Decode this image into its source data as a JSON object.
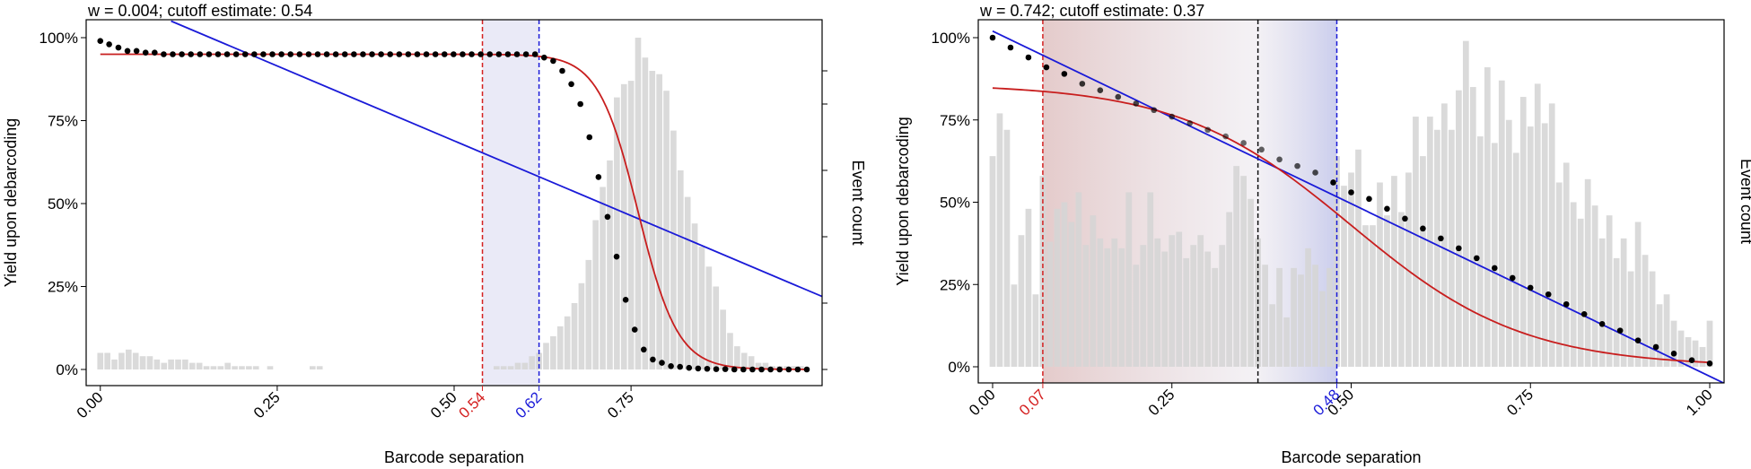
{
  "chart_data": [
    {
      "type": "bar",
      "title": "w = 0.004; cutoff estimate: 0.54",
      "xlabel": "Barcode separation",
      "ylabel": "Yield upon debarcoding",
      "y2label": "Event count",
      "xlim": [
        -0.02,
        1.02
      ],
      "ylim": [
        0,
        1
      ],
      "x_ticks": [
        {
          "v": 0,
          "label": "0.00"
        },
        {
          "v": 0.25,
          "label": "0.25"
        },
        {
          "v": 0.5,
          "label": "0.50"
        },
        {
          "v": 0.75,
          "label": "0.75"
        }
      ],
      "y_ticks": [
        {
          "v": 0,
          "label": "0%"
        },
        {
          "v": 0.25,
          "label": "25%"
        },
        {
          "v": 0.5,
          "label": "50%"
        },
        {
          "v": 0.75,
          "label": "75%"
        },
        {
          "v": 1,
          "label": "100%"
        }
      ],
      "right_ticks": [
        0,
        0.2,
        0.4,
        0.6,
        0.8,
        0.9
      ],
      "cutoffs": [
        {
          "v": 0.54,
          "label": "0.54",
          "color": "#d42020"
        },
        {
          "v": 0.62,
          "label": "0.62",
          "color": "#1a1ad8"
        }
      ],
      "shade": {
        "from": 0.54,
        "to": 0.62,
        "color_left": "#e8e8f6",
        "color_right": "#e8e8f6"
      },
      "hist": {
        "bin_start": 0,
        "bin_width": 0.01,
        "values": [
          0.05,
          0.05,
          0.03,
          0.05,
          0.06,
          0.05,
          0.04,
          0.04,
          0.03,
          0.02,
          0.03,
          0.03,
          0.03,
          0.02,
          0.02,
          0.01,
          0.01,
          0.01,
          0.02,
          0.01,
          0.01,
          0.01,
          0.01,
          0,
          0.01,
          0,
          0,
          0,
          0,
          0,
          0.01,
          0.01,
          0,
          0,
          0,
          0,
          0,
          0,
          0,
          0,
          0,
          0,
          0,
          0,
          0,
          0,
          0,
          0,
          0,
          0,
          0,
          0,
          0,
          0,
          0,
          0,
          0.01,
          0.01,
          0.01,
          0.02,
          0.02,
          0.04,
          0.05,
          0.08,
          0.1,
          0.13,
          0.16,
          0.2,
          0.26,
          0.33,
          0.45,
          0.55,
          0.63,
          0.82,
          0.86,
          0.87,
          1.0,
          0.94,
          0.9,
          0.89,
          0.84,
          0.72,
          0.6,
          0.52,
          0.44,
          0.37,
          0.31,
          0.25,
          0.18,
          0.11,
          0.07,
          0.05,
          0.04,
          0.02,
          0.02,
          0.01,
          0.01,
          0.01,
          0.01,
          0.01
        ],
        "color": "#d5d5d5"
      },
      "points": {
        "x": [
          0,
          0.0125,
          0.0256,
          0.0384,
          0.0512,
          0.064,
          0.0768,
          0.0896,
          0.1024,
          0.1152,
          0.128,
          0.1408,
          0.1536,
          0.1664,
          0.1792,
          0.192,
          0.2048,
          0.2176,
          0.2304,
          0.2432,
          0.256,
          0.2688,
          0.2816,
          0.2944,
          0.3072,
          0.32,
          0.3328,
          0.3456,
          0.3584,
          0.3712,
          0.384,
          0.3968,
          0.4096,
          0.4224,
          0.4352,
          0.448,
          0.4608,
          0.4736,
          0.4864,
          0.4992,
          0.512,
          0.5248,
          0.5376,
          0.5504,
          0.5632,
          0.576,
          0.5888,
          0.6016,
          0.6144,
          0.6272,
          0.64,
          0.6528,
          0.6656,
          0.6784,
          0.6912,
          0.704,
          0.7168,
          0.7296,
          0.7424,
          0.7552,
          0.768,
          0.7808,
          0.7936,
          0.8064,
          0.8192,
          0.832,
          0.8448,
          0.8576,
          0.8704,
          0.8832,
          0.896,
          0.9088,
          0.9216,
          0.9344,
          0.9472,
          0.96,
          0.9728,
          0.9856,
          0.9984
        ],
        "y": [
          0.99,
          0.98,
          0.97,
          0.96,
          0.96,
          0.955,
          0.955,
          0.95,
          0.95,
          0.95,
          0.95,
          0.95,
          0.95,
          0.95,
          0.95,
          0.95,
          0.95,
          0.95,
          0.95,
          0.95,
          0.95,
          0.95,
          0.95,
          0.95,
          0.95,
          0.95,
          0.95,
          0.95,
          0.95,
          0.95,
          0.95,
          0.95,
          0.95,
          0.95,
          0.95,
          0.95,
          0.95,
          0.95,
          0.95,
          0.95,
          0.95,
          0.95,
          0.95,
          0.95,
          0.95,
          0.95,
          0.95,
          0.95,
          0.95,
          0.94,
          0.93,
          0.9,
          0.86,
          0.8,
          0.7,
          0.58,
          0.46,
          0.34,
          0.21,
          0.12,
          0.06,
          0.03,
          0.02,
          0.01,
          0.008,
          0.005,
          0.003,
          0.002,
          0.001,
          0.001,
          0,
          0,
          0,
          0,
          0,
          0,
          0,
          0,
          0
        ],
        "color": "#000000"
      },
      "curve": {
        "type": "logistic",
        "ymax": 0.95,
        "mid": 0.76,
        "scale": 0.028,
        "color": "#c81e1e"
      },
      "fit_line": {
        "x0": 0.1,
        "y0": 1.05,
        "x1": 1.02,
        "y1": 0.22,
        "color": "#1a1ad8"
      }
    },
    {
      "type": "bar",
      "title": "w = 0.742; cutoff estimate: 0.37",
      "xlabel": "Barcode separation",
      "ylabel": "Yield upon debarcoding",
      "y2label": "Event count",
      "xlim": [
        -0.02,
        1.02
      ],
      "ylim": [
        0,
        1
      ],
      "x_ticks": [
        {
          "v": 0,
          "label": "0.00"
        },
        {
          "v": 0.25,
          "label": "0.25"
        },
        {
          "v": 0.5,
          "label": "0.50"
        },
        {
          "v": 0.75,
          "label": "0.75"
        },
        {
          "v": 1,
          "label": "1.00"
        }
      ],
      "y_ticks": [
        {
          "v": 0,
          "label": "0%"
        },
        {
          "v": 0.25,
          "label": "25%"
        },
        {
          "v": 0.5,
          "label": "50%"
        },
        {
          "v": 0.75,
          "label": "75%"
        },
        {
          "v": 1,
          "label": "100%"
        }
      ],
      "right_ticks": [],
      "cutoffs": [
        {
          "v": 0.07,
          "label": "0.07",
          "color": "#d42020"
        },
        {
          "v": 0.37,
          "label": "",
          "color": "#111111"
        },
        {
          "v": 0.48,
          "label": "0.48",
          "color": "#1a1ad8"
        }
      ],
      "shade": {
        "from": 0.07,
        "to": 0.48,
        "color_left": "#e3c8c8",
        "color_right": "#c8cbec"
      },
      "hist": {
        "bin_start": 0,
        "bin_width": 0.01,
        "values": [
          0.64,
          0.77,
          0.72,
          0.25,
          0.4,
          0.48,
          0.22,
          0.58,
          0.38,
          0.48,
          0.5,
          0.44,
          0.53,
          0.37,
          0.46,
          0.39,
          0.36,
          0.39,
          0.36,
          0.53,
          0.31,
          0.37,
          0.53,
          0.39,
          0.35,
          0.4,
          0.41,
          0.33,
          0.37,
          0.4,
          0.35,
          0.3,
          0.37,
          0.47,
          0.61,
          0.58,
          0.51,
          0.39,
          0.31,
          0.19,
          0.3,
          0.15,
          0.3,
          0.28,
          0.36,
          0.31,
          0.23,
          0.3,
          0.64,
          0.55,
          0.59,
          0.66,
          0.43,
          0.43,
          0.56,
          0.46,
          0.58,
          0.47,
          0.59,
          0.76,
          0.64,
          0.76,
          0.72,
          0.8,
          0.72,
          0.84,
          0.99,
          0.85,
          0.7,
          0.91,
          0.68,
          0.87,
          0.75,
          0.65,
          0.82,
          0.73,
          0.86,
          0.74,
          0.8,
          0.56,
          0.62,
          0.5,
          0.45,
          0.57,
          0.49,
          0.39,
          0.46,
          0.33,
          0.39,
          0.29,
          0.44,
          0.34,
          0.29,
          0.19,
          0.22,
          0.14,
          0.11,
          0.09,
          0.08,
          0.06,
          0.14
        ],
        "color": "#d5d5d5"
      },
      "points": {
        "x": [
          0,
          0.025,
          0.05,
          0.075,
          0.1,
          0.125,
          0.15,
          0.175,
          0.2,
          0.225,
          0.25,
          0.275,
          0.3,
          0.325,
          0.35,
          0.375,
          0.4,
          0.425,
          0.45,
          0.475,
          0.5,
          0.525,
          0.55,
          0.575,
          0.6,
          0.625,
          0.65,
          0.675,
          0.7,
          0.725,
          0.75,
          0.775,
          0.8,
          0.825,
          0.85,
          0.875,
          0.9,
          0.925,
          0.95,
          0.975,
          1.0
        ],
        "y": [
          1.0,
          0.97,
          0.94,
          0.91,
          0.89,
          0.86,
          0.84,
          0.82,
          0.8,
          0.78,
          0.76,
          0.74,
          0.72,
          0.7,
          0.68,
          0.66,
          0.63,
          0.61,
          0.59,
          0.56,
          0.53,
          0.51,
          0.48,
          0.45,
          0.42,
          0.39,
          0.36,
          0.33,
          0.3,
          0.27,
          0.24,
          0.22,
          0.19,
          0.16,
          0.13,
          0.11,
          0.08,
          0.06,
          0.04,
          0.02,
          0.01
        ],
        "color": "#000000",
        "fade_from": 0.12,
        "fade_to": 0.46
      },
      "curve": {
        "type": "logistic",
        "ymax": 0.86,
        "mid": 0.5,
        "scale": 0.12,
        "color": "#c81e1e",
        "x_from": 0,
        "x_to": 1.0
      },
      "fit_line": {
        "x0": 0,
        "y0": 1.02,
        "x1": 1.02,
        "y1": -0.05,
        "color": "#1a1ad8"
      }
    }
  ]
}
